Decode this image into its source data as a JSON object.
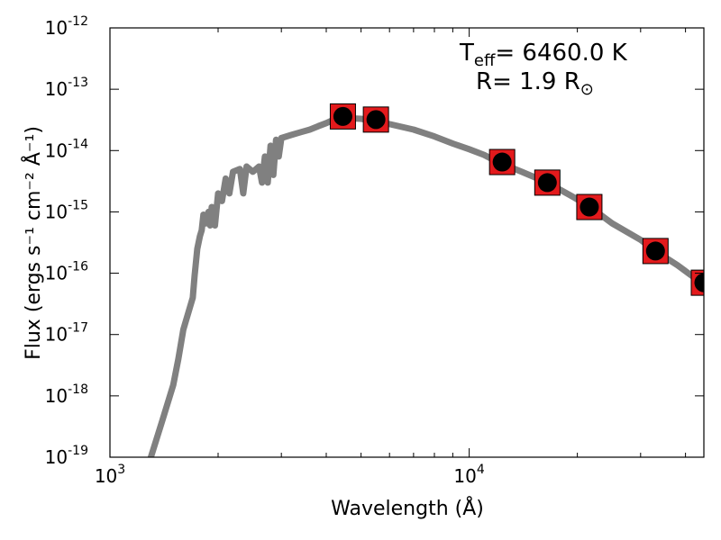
{
  "chart_data": {
    "type": "line",
    "xlabel": "Wavelength (Å)",
    "ylabel": "Flux (ergs s⁻¹ cm⁻² Å⁻¹)",
    "x_scale": "log",
    "y_scale": "log",
    "xlim": [
      1000,
      45000
    ],
    "ylim": [
      1e-19,
      1e-12
    ],
    "x_ticks": [
      {
        "value": 1000,
        "base": "10",
        "exp": "3"
      },
      {
        "value": 10000,
        "base": "10",
        "exp": "4"
      }
    ],
    "y_ticks": [
      {
        "value": 1e-19,
        "base": "10",
        "exp": "-19"
      },
      {
        "value": 1e-18,
        "base": "10",
        "exp": "-18"
      },
      {
        "value": 1e-17,
        "base": "10",
        "exp": "-17"
      },
      {
        "value": 1e-16,
        "base": "10",
        "exp": "-16"
      },
      {
        "value": 1e-15,
        "base": "10",
        "exp": "-15"
      },
      {
        "value": 1e-14,
        "base": "10",
        "exp": "-14"
      },
      {
        "value": 1e-13,
        "base": "10",
        "exp": "-13"
      },
      {
        "value": 1e-12,
        "base": "10",
        "exp": "-12"
      }
    ],
    "annotation": {
      "teff_symbol": "T",
      "teff_sub": "eff",
      "teff_value": "= 6460.0 K",
      "radius_text": "R= 1.9 R",
      "radius_sub": "⊙"
    },
    "grid": false,
    "series": [
      {
        "type": "line",
        "color": "#808080",
        "points": [
          [
            1300,
            1e-19
          ],
          [
            1400,
            4e-19
          ],
          [
            1500,
            1.5e-18
          ],
          [
            1550,
            4e-18
          ],
          [
            1600,
            1.2e-17
          ],
          [
            1700,
            4e-17
          ],
          [
            1720,
            9e-17
          ],
          [
            1750,
            2.5e-16
          ],
          [
            1780,
            4e-16
          ],
          [
            1800,
            5e-16
          ],
          [
            1820,
            9e-16
          ],
          [
            1850,
            6.5e-16
          ],
          [
            1880,
            1e-15
          ],
          [
            1900,
            6e-16
          ],
          [
            1920,
            1.2e-15
          ],
          [
            1960,
            6e-16
          ],
          [
            2000,
            2e-15
          ],
          [
            2050,
            1.5e-15
          ],
          [
            2100,
            3.5e-15
          ],
          [
            2150,
            2e-15
          ],
          [
            2200,
            4.5e-15
          ],
          [
            2300,
            5e-15
          ],
          [
            2350,
            2e-15
          ],
          [
            2400,
            5.5e-15
          ],
          [
            2500,
            4.5e-15
          ],
          [
            2600,
            5.5e-15
          ],
          [
            2650,
            3e-15
          ],
          [
            2700,
            8e-15
          ],
          [
            2750,
            3e-15
          ],
          [
            2800,
            1.2e-14
          ],
          [
            2850,
            4e-15
          ],
          [
            2900,
            1.5e-14
          ],
          [
            2950,
            8e-15
          ],
          [
            3000,
            1.6e-14
          ],
          [
            3200,
            1.8e-14
          ],
          [
            3400,
            2e-14
          ],
          [
            3600,
            2.2e-14
          ],
          [
            3800,
            2.5e-14
          ],
          [
            4000,
            2.8e-14
          ],
          [
            4200,
            3.2e-14
          ],
          [
            4500,
            3.4e-14
          ],
          [
            5000,
            3.3e-14
          ],
          [
            5500,
            3e-14
          ],
          [
            6000,
            2.7e-14
          ],
          [
            7000,
            2.2e-14
          ],
          [
            8000,
            1.7e-14
          ],
          [
            9000,
            1.3e-14
          ],
          [
            10000,
            1.05e-14
          ],
          [
            11000,
            8.5e-15
          ],
          [
            12000,
            6.5e-15
          ],
          [
            14000,
            4.5e-15
          ],
          [
            16500,
            3e-15
          ],
          [
            19000,
            1.9e-15
          ],
          [
            21500,
            1.25e-15
          ],
          [
            25000,
            6.5e-16
          ],
          [
            30000,
            3.5e-16
          ],
          [
            33000,
            2.3e-16
          ],
          [
            38000,
            1.35e-16
          ],
          [
            45000,
            6.5e-17
          ]
        ]
      },
      {
        "type": "scatter",
        "name": "",
        "marker_outer": "square",
        "marker_outer_color": "#e31a1c",
        "marker_inner": "circle",
        "marker_inner_color": "#000000",
        "points": [
          [
            4450,
            3.6e-14
          ],
          [
            5500,
            3.2e-14
          ],
          [
            12350,
            6.5e-15
          ],
          [
            16500,
            3e-15
          ],
          [
            21600,
            1.2e-15
          ],
          [
            33000,
            2.3e-16
          ],
          [
            45000,
            7e-17
          ]
        ]
      }
    ]
  }
}
